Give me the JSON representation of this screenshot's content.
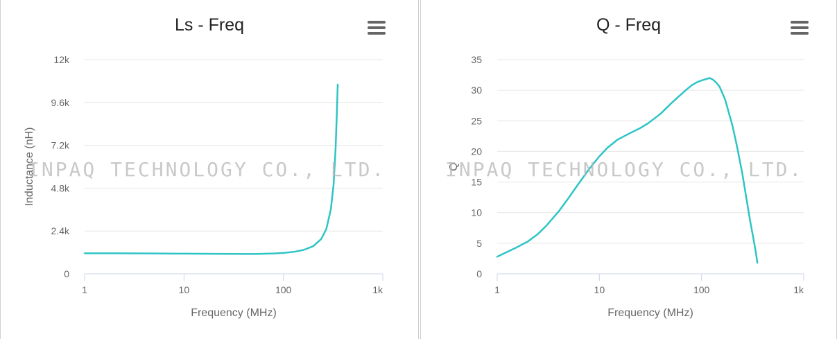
{
  "watermark": "INPAQ TECHNOLOGY CO., LTD.",
  "colors": {
    "series": "#2ec4c6",
    "grid": "#e6e6e6",
    "axis": "#ccd6eb",
    "text": "#666666",
    "menu": "#666666"
  },
  "menu_icon": "hamburger-menu-icon",
  "chart_data": [
    {
      "id": "ls",
      "type": "line",
      "title": "Ls - Freq",
      "xlabel": "Frequency (MHz)",
      "ylabel": "Inductance (nH)",
      "x_scale": "log",
      "xlim": [
        1,
        1000
      ],
      "ylim": [
        0,
        12000
      ],
      "x_ticks": [
        1,
        10,
        100,
        1000
      ],
      "x_tick_labels": [
        "1",
        "10",
        "100",
        "1k"
      ],
      "y_ticks": [
        0,
        2400,
        4800,
        7200,
        9600,
        12000
      ],
      "y_tick_labels": [
        "0",
        "2.4k",
        "4.8k",
        "7.2k",
        "9.6k",
        "12k"
      ],
      "grid": true,
      "legend": "none",
      "series": [
        {
          "x": [
            1,
            2,
            5,
            10,
            20,
            50,
            80,
            100,
            130,
            160,
            200,
            240,
            270,
            300,
            320,
            335,
            345,
            352
          ],
          "y": [
            1150,
            1150,
            1140,
            1130,
            1120,
            1110,
            1140,
            1170,
            1240,
            1340,
            1550,
            1950,
            2500,
            3600,
            5000,
            7000,
            9000,
            10600
          ]
        }
      ]
    },
    {
      "id": "q",
      "type": "line",
      "title": "Q - Freq",
      "xlabel": "Frequency (MHz)",
      "ylabel": "Q",
      "x_scale": "log",
      "xlim": [
        1,
        1000
      ],
      "ylim": [
        0,
        35
      ],
      "x_ticks": [
        1,
        10,
        100,
        1000
      ],
      "x_tick_labels": [
        "1",
        "10",
        "100",
        "1k"
      ],
      "y_ticks": [
        0,
        5,
        10,
        15,
        20,
        25,
        30,
        35
      ],
      "y_tick_labels": [
        "0",
        "5",
        "10",
        "15",
        "20",
        "25",
        "30",
        "35"
      ],
      "grid": true,
      "legend": "none",
      "series": [
        {
          "x": [
            1,
            1.5,
            2,
            2.5,
            3,
            4,
            5,
            6,
            8,
            10,
            12,
            15,
            20,
            25,
            30,
            40,
            50,
            60,
            70,
            80,
            90,
            100,
            110,
            120,
            130,
            140,
            150,
            170,
            200,
            220,
            250,
            280,
            300,
            320,
            340,
            352
          ],
          "y": [
            2.8,
            4.2,
            5.3,
            6.5,
            7.8,
            10.2,
            12.4,
            14.3,
            17.2,
            19.2,
            20.6,
            21.9,
            23.0,
            23.8,
            24.6,
            26.2,
            27.8,
            29.0,
            30.0,
            30.8,
            31.3,
            31.6,
            31.8,
            32.0,
            31.7,
            31.2,
            30.6,
            28.5,
            24.3,
            21.2,
            16.5,
            11.5,
            8.5,
            6.0,
            3.5,
            1.8
          ]
        }
      ]
    }
  ]
}
